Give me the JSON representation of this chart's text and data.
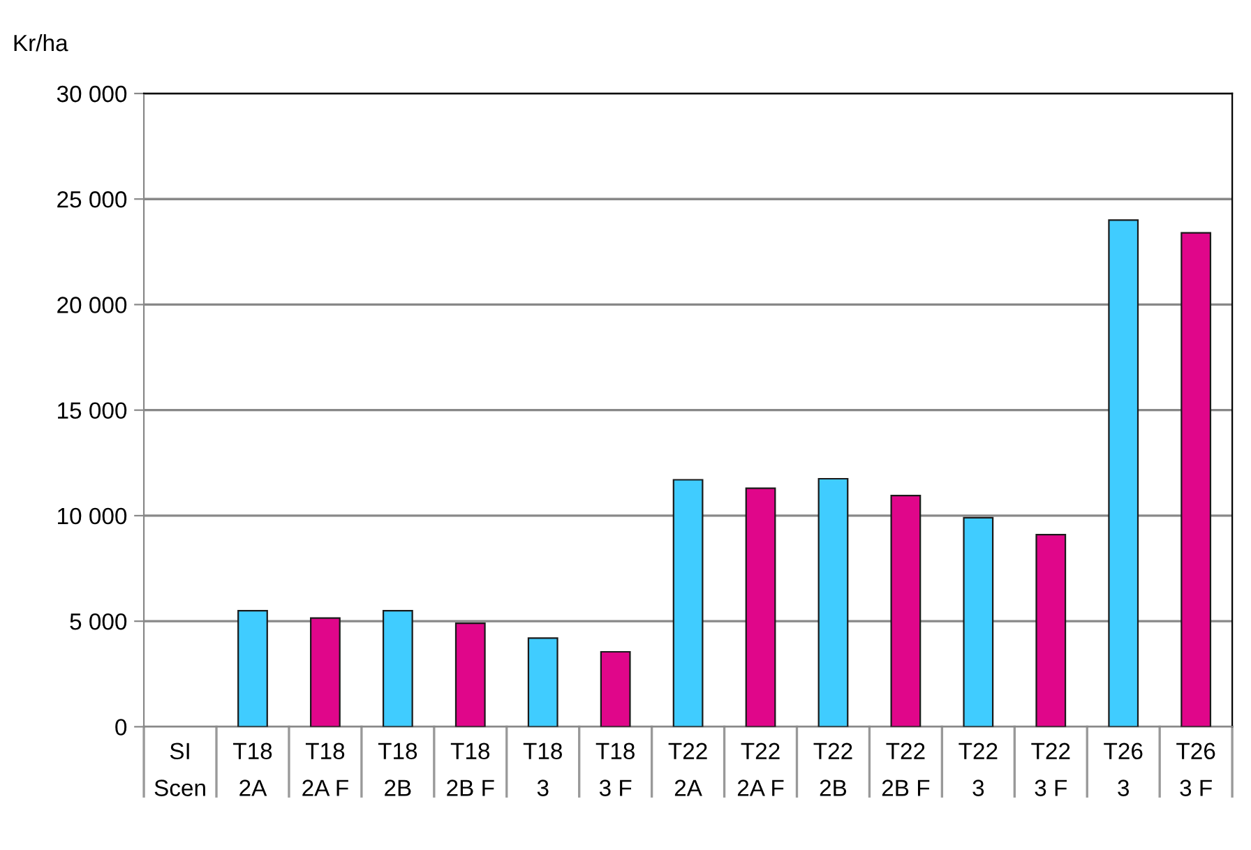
{
  "chart_data": {
    "type": "bar",
    "ylabel": "Kr/ha",
    "categories": [
      "SI\nScen",
      "T18\n2A",
      "T18\n2A F",
      "T18\n2B",
      "T18\n2B F",
      "T18\n3",
      "T18\n3 F",
      "T22\n2A",
      "T22\n2A F",
      "T22\n2B",
      "T22\n2B F",
      "T22\n3",
      "T22\n3 F",
      "T26\n3",
      "T26\n3 F"
    ],
    "values": [
      null,
      5500,
      5150,
      5500,
      4900,
      4200,
      3550,
      11700,
      11300,
      11750,
      10950,
      9900,
      9100,
      24000,
      23400
    ],
    "colors": [
      null,
      "#40ccff",
      "#e0068a",
      "#40ccff",
      "#e0068a",
      "#40ccff",
      "#e0068a",
      "#40ccff",
      "#e0068a",
      "#40ccff",
      "#e0068a",
      "#40ccff",
      "#e0068a",
      "#40ccff",
      "#e0068a"
    ],
    "ylim": [
      0,
      30000
    ],
    "yticks": [
      {
        "value": 0,
        "label": "0"
      },
      {
        "value": 5000,
        "label": "5 000"
      },
      {
        "value": 10000,
        "label": "10 000"
      },
      {
        "value": 15000,
        "label": "15 000"
      },
      {
        "value": 20000,
        "label": "20 000"
      },
      {
        "value": 25000,
        "label": "25 000"
      },
      {
        "value": 30000,
        "label": "30 000"
      }
    ],
    "grid": "y",
    "legend": false
  }
}
